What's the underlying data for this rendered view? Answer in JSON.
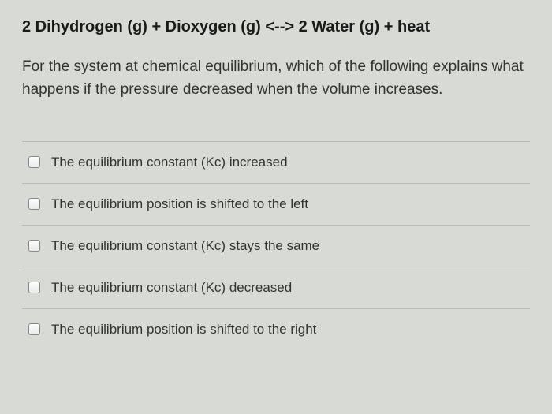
{
  "equation": {
    "text": "2 Dihydrogen (g) +  Dioxygen (g)   <-->   2 Water (g) + heat",
    "font_weight": "bold",
    "font_size_pt": 15
  },
  "question": {
    "text": "For the system at chemical equilibrium, which of the following explains what happens if the pressure decreased when the volume increases.",
    "font_size_pt": 14
  },
  "options": [
    {
      "label": "The equilibrium constant (Kc) increased",
      "checked": false
    },
    {
      "label": "The equilibrium position is shifted to the left",
      "checked": false
    },
    {
      "label": "The equilibrium constant (Kc) stays the same",
      "checked": false
    },
    {
      "label": "The equilibrium constant (Kc) decreased",
      "checked": false
    },
    {
      "label": "The equilibrium position is shifted to the right",
      "checked": false
    }
  ],
  "colors": {
    "background": "#d8dad6",
    "text_primary": "#1a1a1a",
    "text_body": "#333333",
    "divider": "#b8bab6",
    "checkbox_border": "#888888"
  }
}
